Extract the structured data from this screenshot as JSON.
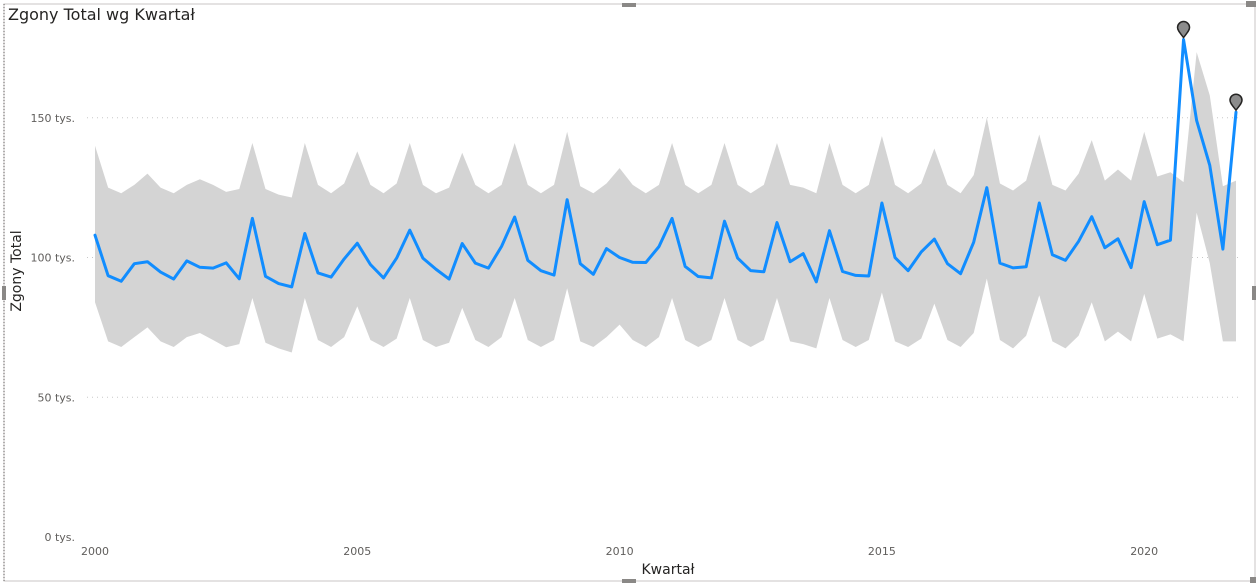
{
  "chart_data": {
    "type": "line",
    "title": "Zgony Total wg Kwartał",
    "xlabel": "Kwartał",
    "ylabel": "Zgony Total",
    "ylim": [
      0,
      190000
    ],
    "x_range": [
      2000,
      2021.75
    ],
    "y_ticks": [
      {
        "value": 0,
        "label": "0 tys."
      },
      {
        "value": 50000,
        "label": "50 tys."
      },
      {
        "value": 100000,
        "label": "100 tys."
      },
      {
        "value": 150000,
        "label": "150 tys."
      }
    ],
    "x_ticks": [
      {
        "value": 2000,
        "label": "2000"
      },
      {
        "value": 2005,
        "label": "2005"
      },
      {
        "value": 2010,
        "label": "2010"
      },
      {
        "value": 2015,
        "label": "2015"
      },
      {
        "value": 2020,
        "label": "2020"
      }
    ],
    "grid": "horizontal dotted",
    "legend": "none",
    "x": [
      2000.0,
      2000.25,
      2000.5,
      2000.75,
      2001.0,
      2001.25,
      2001.5,
      2001.75,
      2002.0,
      2002.25,
      2002.5,
      2002.75,
      2003.0,
      2003.25,
      2003.5,
      2003.75,
      2004.0,
      2004.25,
      2004.5,
      2004.75,
      2005.0,
      2005.25,
      2005.5,
      2005.75,
      2006.0,
      2006.25,
      2006.5,
      2006.75,
      2007.0,
      2007.25,
      2007.5,
      2007.75,
      2008.0,
      2008.25,
      2008.5,
      2008.75,
      2009.0,
      2009.25,
      2009.5,
      2009.75,
      2010.0,
      2010.25,
      2010.5,
      2010.75,
      2011.0,
      2011.25,
      2011.5,
      2011.75,
      2012.0,
      2012.25,
      2012.5,
      2012.75,
      2013.0,
      2013.25,
      2013.5,
      2013.75,
      2014.0,
      2014.25,
      2014.5,
      2014.75,
      2015.0,
      2015.25,
      2015.5,
      2015.75,
      2016.0,
      2016.25,
      2016.5,
      2016.75,
      2017.0,
      2017.25,
      2017.5,
      2017.75,
      2018.0,
      2018.25,
      2018.5,
      2018.75,
      2019.0,
      2019.25,
      2019.5,
      2019.75,
      2020.0,
      2020.25,
      2020.5,
      2020.75,
      2021.0,
      2021.25,
      2021.5,
      2021.75
    ],
    "series": [
      {
        "role": "line",
        "color": "#118dff",
        "values": [
          108000,
          93500,
          91500,
          97800,
          98500,
          94800,
          92300,
          98800,
          96500,
          96200,
          98100,
          92400,
          114000,
          93300,
          90700,
          89500,
          108600,
          94500,
          93000,
          99500,
          105100,
          97500,
          92700,
          99800,
          109800,
          99800,
          95800,
          92300,
          105000,
          98000,
          96200,
          104000,
          114500,
          99000,
          95300,
          93700,
          120700,
          97800,
          94000,
          103200,
          100000,
          98300,
          98200,
          103900,
          114000,
          96800,
          93200,
          92700,
          113000,
          99800,
          95300,
          94900,
          112500,
          98500,
          101400,
          91300,
          109600,
          95000,
          93600,
          93400,
          119500,
          100000,
          95300,
          102000,
          106600,
          97800,
          94200,
          105500,
          125000,
          98000,
          96300,
          96700,
          119500,
          101000,
          99000,
          105800,
          114600,
          103500,
          106700,
          96400,
          120000,
          104600,
          106200,
          178000,
          149000,
          133000,
          103000,
          152000
        ]
      },
      {
        "role": "band-upper",
        "color": "#d4d4d4",
        "values": [
          140000,
          125000,
          123000,
          126000,
          130000,
          125000,
          123000,
          126000,
          128000,
          126000,
          123500,
          124500,
          141000,
          124500,
          122500,
          121500,
          141000,
          126000,
          123000,
          126500,
          138000,
          126000,
          123000,
          126500,
          141000,
          126000,
          123000,
          125000,
          137500,
          126000,
          123000,
          126000,
          141000,
          126000,
          123000,
          126000,
          145000,
          125500,
          123000,
          126500,
          132000,
          126000,
          123000,
          126000,
          141000,
          126000,
          123000,
          126000,
          141000,
          126000,
          123000,
          126000,
          141000,
          126000,
          125000,
          123000,
          141000,
          126000,
          123000,
          126000,
          143500,
          126000,
          123000,
          126500,
          139000,
          126000,
          123000,
          129500,
          150000,
          126500,
          124000,
          127500,
          144000,
          126000,
          124000,
          130000,
          142000,
          127500,
          131500,
          127500,
          145000,
          129000,
          130500,
          127000,
          173500,
          158000,
          125500,
          127500
        ]
      },
      {
        "role": "band-lower",
        "color": "#d4d4d4",
        "values": [
          84000,
          70000,
          68000,
          71500,
          75000,
          70000,
          68000,
          71500,
          73000,
          70500,
          67900,
          69000,
          85500,
          69500,
          67500,
          66000,
          85500,
          70500,
          68000,
          71500,
          82500,
          70500,
          68000,
          71000,
          85500,
          70500,
          68000,
          69500,
          82000,
          70500,
          68000,
          71500,
          85500,
          70500,
          68000,
          70500,
          89000,
          70000,
          68000,
          71500,
          76000,
          70500,
          68000,
          71500,
          85500,
          70500,
          68000,
          70500,
          85500,
          70500,
          68000,
          70500,
          85500,
          70000,
          69000,
          67500,
          85500,
          70500,
          68000,
          70500,
          87500,
          70000,
          68000,
          71000,
          83500,
          70500,
          68000,
          73000,
          92500,
          70500,
          67500,
          72000,
          86500,
          70000,
          67500,
          72000,
          84000,
          70000,
          73500,
          70000,
          87000,
          71000,
          72500,
          70000,
          116000,
          98000,
          70000,
          70000
        ]
      }
    ],
    "anomaly_markers": [
      {
        "x": 2020.75,
        "y": 178000
      },
      {
        "x": 2021.75,
        "y": 152000
      }
    ]
  },
  "colors": {
    "line": "#118dff",
    "band": "#d4d4d4",
    "marker_fill": "#8c8c8c",
    "marker_stroke": "#252423",
    "grid": "#c8c8c8",
    "frame": "#c8c6c4"
  }
}
